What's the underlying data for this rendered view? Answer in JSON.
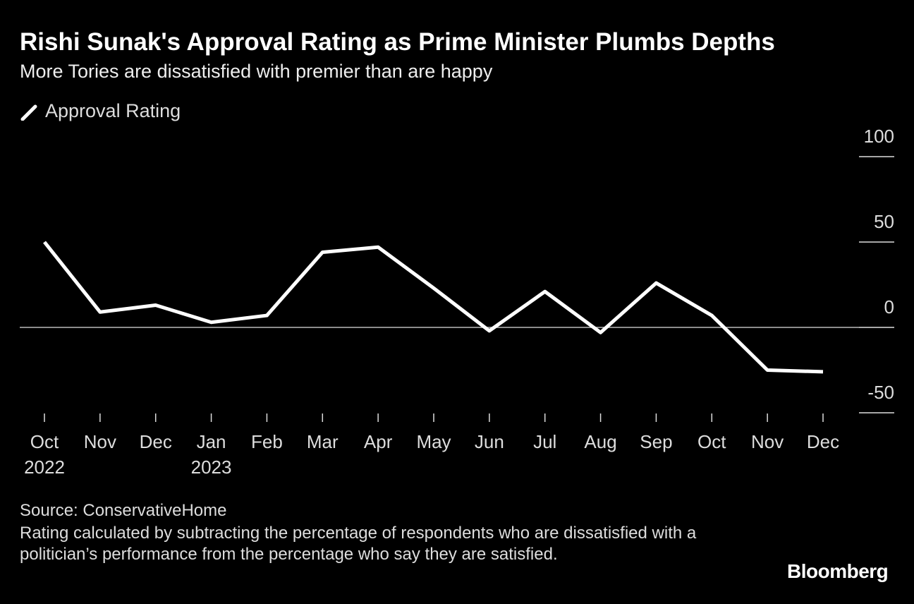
{
  "title": "Rishi Sunak's Approval Rating as Prime Minister Plumbs Depths",
  "subtitle": "More Tories are dissatisfied with premier than are happy",
  "chart_data": {
    "type": "line",
    "categories": [
      "Oct\n2022",
      "Nov",
      "Dec",
      "Jan\n2023",
      "Feb",
      "Mar",
      "Apr",
      "May",
      "Jun",
      "Jul",
      "Aug",
      "Sep",
      "Oct",
      "Nov",
      "Dec"
    ],
    "series": [
      {
        "name": "Approval Rating",
        "color": "#ffffff",
        "values": [
          50,
          9,
          13,
          3,
          7,
          44,
          47,
          23,
          -2,
          21,
          -3,
          26,
          7,
          -25,
          -26
        ]
      }
    ],
    "ylim": [
      -50,
      100
    ],
    "yticks": [
      -50,
      0,
      50,
      100
    ]
  },
  "source": "Source: ConservativeHome",
  "note": "Rating calculated by subtracting the percentage of respondents who are dissatisfied with a politician’s performance from the percentage who say they are satisfied.",
  "brand": "Bloomberg"
}
